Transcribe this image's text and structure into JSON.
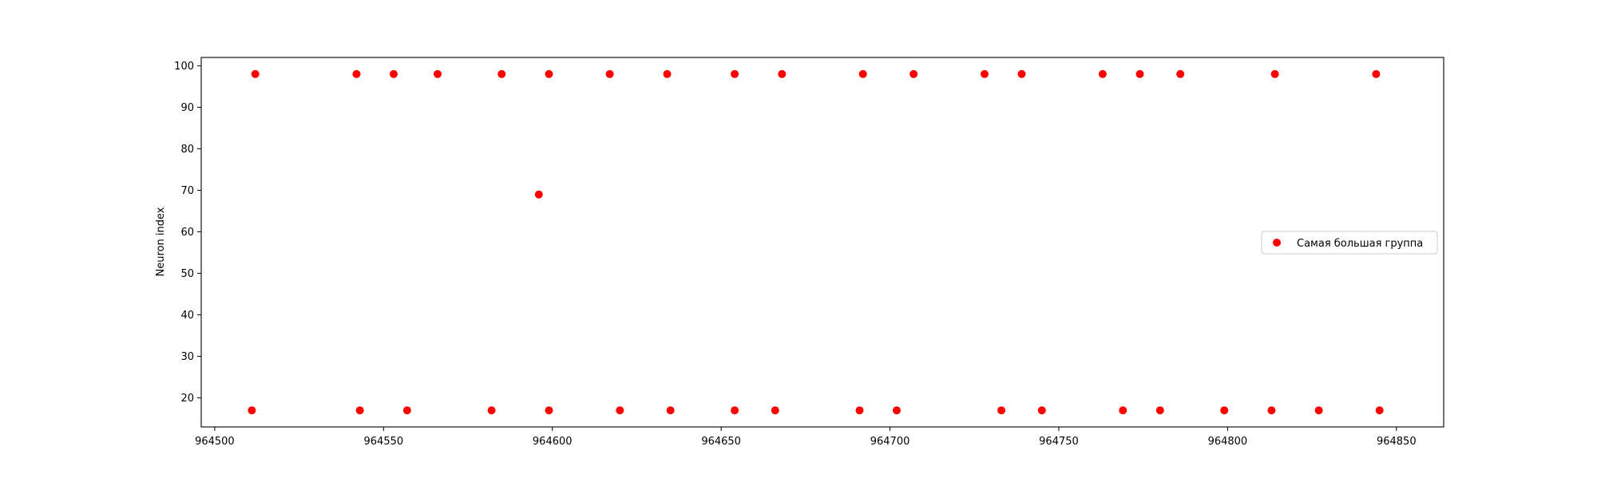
{
  "chart_data": {
    "type": "scatter",
    "title": "",
    "xlabel": "",
    "ylabel": "Neuron index",
    "xlim": [
      964496,
      964864
    ],
    "ylim": [
      13,
      102
    ],
    "xticks": [
      964500,
      964550,
      964600,
      964650,
      964700,
      964750,
      964800,
      964850
    ],
    "yticks": [
      20,
      30,
      40,
      50,
      60,
      70,
      80,
      90,
      100
    ],
    "grid": false,
    "legend": {
      "position": "center-right"
    },
    "series": [
      {
        "name": "Самая большая группа",
        "color": "#ff0000",
        "marker": "circle",
        "points": [
          [
            964512,
            98
          ],
          [
            964542,
            98
          ],
          [
            964553,
            98
          ],
          [
            964566,
            98
          ],
          [
            964585,
            98
          ],
          [
            964599,
            98
          ],
          [
            964617,
            98
          ],
          [
            964634,
            98
          ],
          [
            964654,
            98
          ],
          [
            964668,
            98
          ],
          [
            964692,
            98
          ],
          [
            964707,
            98
          ],
          [
            964728,
            98
          ],
          [
            964739,
            98
          ],
          [
            964763,
            98
          ],
          [
            964774,
            98
          ],
          [
            964786,
            98
          ],
          [
            964814,
            98
          ],
          [
            964844,
            98
          ],
          [
            964596,
            69
          ],
          [
            964511,
            17
          ],
          [
            964543,
            17
          ],
          [
            964557,
            17
          ],
          [
            964582,
            17
          ],
          [
            964599,
            17
          ],
          [
            964620,
            17
          ],
          [
            964635,
            17
          ],
          [
            964654,
            17
          ],
          [
            964666,
            17
          ],
          [
            964691,
            17
          ],
          [
            964702,
            17
          ],
          [
            964733,
            17
          ],
          [
            964745,
            17
          ],
          [
            964769,
            17
          ],
          [
            964780,
            17
          ],
          [
            964799,
            17
          ],
          [
            964813,
            17
          ],
          [
            964827,
            17
          ],
          [
            964845,
            17
          ]
        ]
      }
    ]
  }
}
